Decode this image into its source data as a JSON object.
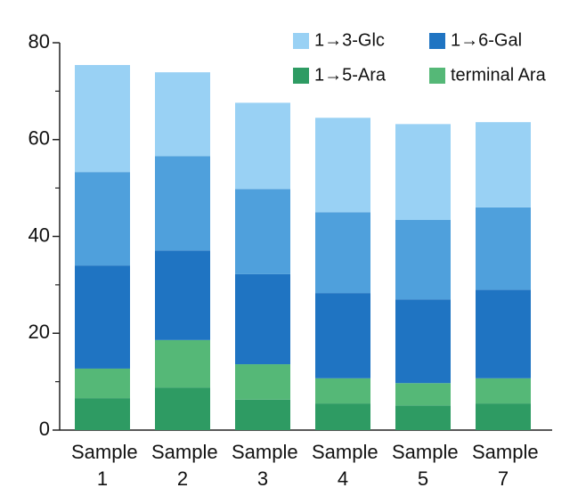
{
  "chart_data": {
    "type": "stacked_bar",
    "categories": [
      "Sample 1",
      "Sample 2",
      "Sample 3",
      "Sample 4",
      "Sample 5",
      "Sample 7"
    ],
    "series": [
      {
        "name": "1→5-Ara",
        "color": "#2e9b63",
        "values": [
          6.6,
          8.8,
          6.3,
          5.5,
          5.1,
          5.5
        ]
      },
      {
        "name": "terminal Ara",
        "color": "#55b877",
        "values": [
          6.1,
          9.8,
          7.3,
          5.2,
          4.6,
          5.2
        ]
      },
      {
        "name": "1→6-Gal",
        "color": "#1f74c2",
        "values": [
          21.3,
          18.5,
          18.6,
          17.6,
          17.3,
          18.3
        ]
      },
      {
        "color": "#4fa0dc",
        "values": [
          19.3,
          19.5,
          17.6,
          16.7,
          16.4,
          17.0
        ]
      },
      {
        "name": "1→3-Glc",
        "color": "#99d1f4",
        "values": [
          22.1,
          17.3,
          17.8,
          19.5,
          19.8,
          17.6
        ]
      }
    ],
    "ylim": [
      0,
      80
    ],
    "yticks": [
      0,
      20,
      40,
      60,
      80
    ],
    "minor_yticks": [
      10,
      30,
      50,
      70
    ]
  }
}
